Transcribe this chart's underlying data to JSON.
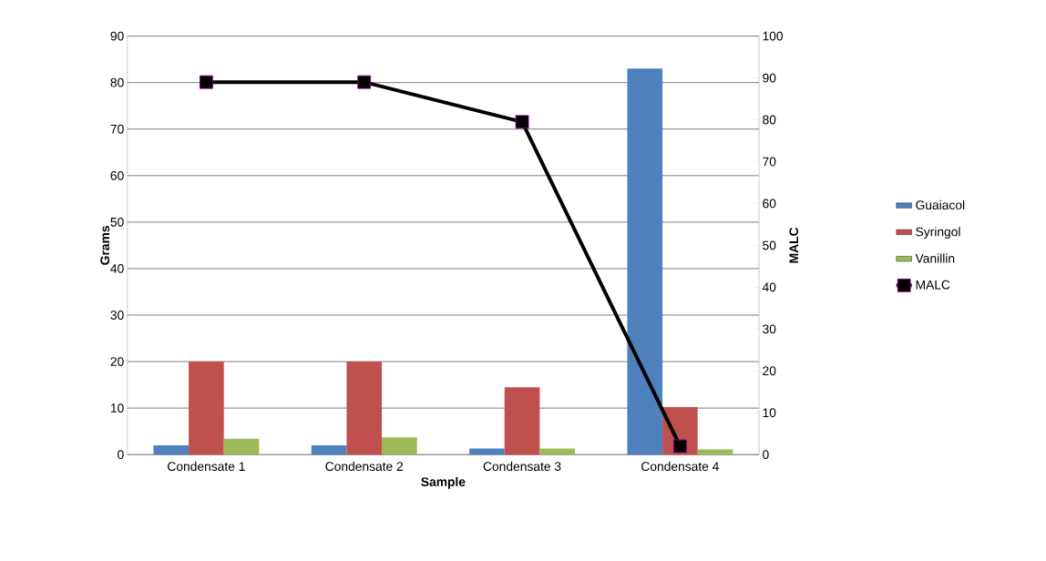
{
  "chart_data": {
    "type": "bar",
    "xlabel": "Sample",
    "ylabel": "Grams",
    "y2label": "MALC",
    "categories": [
      "Condensate 1",
      "Condensate 2",
      "Condensate 3",
      "Condensate 4"
    ],
    "series": [
      {
        "name": "Guaiacol",
        "color": "#4f81bd",
        "values": [
          2,
          2,
          1.3,
          83
        ]
      },
      {
        "name": "Syringol",
        "color": "#c0504d",
        "values": [
          20,
          20,
          14.5,
          10.2
        ]
      },
      {
        "name": "Vanillin",
        "color": "#9bbb59",
        "values": [
          3.4,
          3.7,
          1.3,
          1.1
        ]
      },
      {
        "name": "MALC",
        "type": "line",
        "axis": "y2",
        "color": "#000000",
        "marker": "square",
        "values": [
          89,
          89,
          79.5,
          2
        ]
      }
    ],
    "ylim": [
      0,
      90
    ],
    "yticks": [
      0,
      10,
      20,
      30,
      40,
      50,
      60,
      70,
      80,
      90
    ],
    "y2lim": [
      0,
      100
    ],
    "y2ticks": [
      0,
      10,
      20,
      30,
      40,
      50,
      60,
      70,
      80,
      90,
      100
    ],
    "grid": "y",
    "legend": "right"
  }
}
